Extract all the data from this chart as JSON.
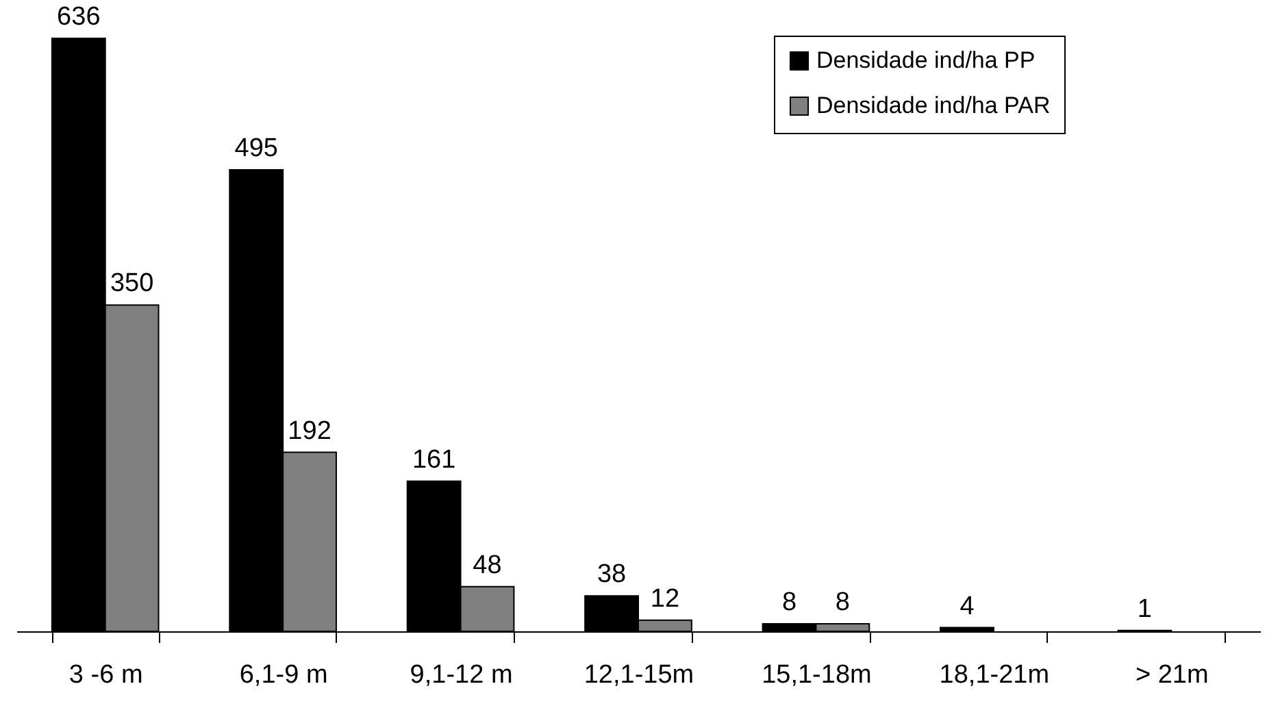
{
  "chart_data": {
    "type": "bar",
    "categories": [
      "3 -6 m",
      "6,1-9 m",
      "9,1-12 m",
      "12,1-15m",
      "15,1-18m",
      "18,1-21m",
      "> 21m"
    ],
    "series": [
      {
        "name": "Densidade ind/ha PP",
        "color": "#000000",
        "values": [
          636,
          495,
          161,
          38,
          8,
          4,
          1
        ]
      },
      {
        "name": "Densidade ind/ha PAR",
        "color": "#808080",
        "values": [
          350,
          192,
          48,
          12,
          8,
          null,
          null
        ]
      }
    ],
    "data_labels": true,
    "legend": "top right",
    "tick_labels": "x"
  }
}
